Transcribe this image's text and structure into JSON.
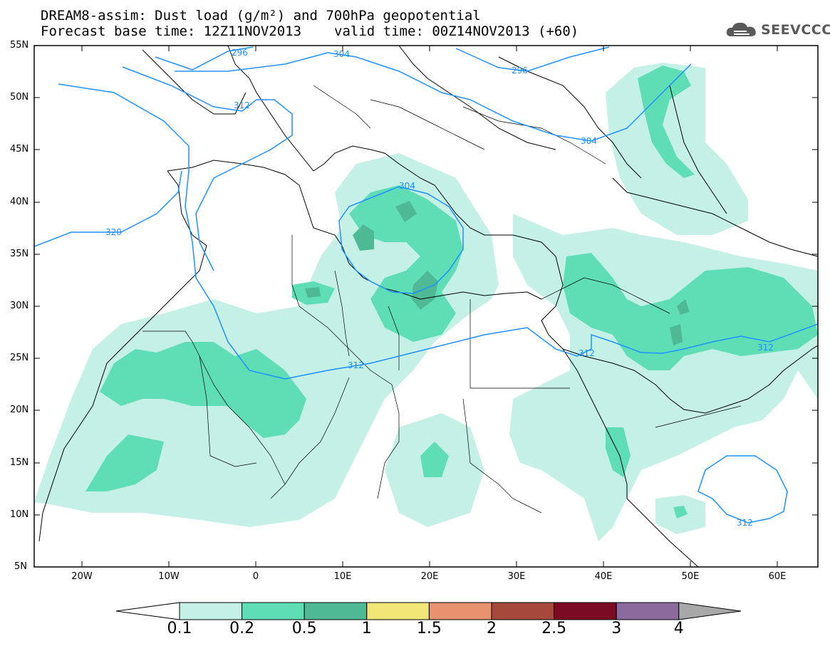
{
  "header": {
    "title_line1": "DREAM8-assim: Dust load (g/m²) and 700hPa geopotential",
    "base_time": "Forecast base time: 12Z11NOV2013",
    "valid_time": "valid time: 00Z14NOV2013 (+60)"
  },
  "logo": {
    "icon": "cloud-icon",
    "text": "SEEVCCC"
  },
  "axes": {
    "lat_labels": [
      "55N",
      "50N",
      "45N",
      "40N",
      "35N",
      "30N",
      "25N",
      "20N",
      "15N",
      "10N",
      "5N"
    ],
    "lon_labels": [
      "20W",
      "10W",
      "0",
      "10E",
      "20E",
      "30E",
      "40E",
      "50E",
      "60E"
    ]
  },
  "contours": {
    "color": "#1e90ff",
    "labels": [
      "296",
      "304",
      "296",
      "312",
      "304",
      "320",
      "304",
      "312",
      "312",
      "312",
      "312"
    ]
  },
  "colorbar": {
    "colors": [
      "#c4f0e6",
      "#5fdeb6",
      "#4fb894",
      "#f2e578",
      "#e89270",
      "#a5493c",
      "#7b0b25",
      "#8b6a9d",
      "#a8a8a8"
    ],
    "labels": [
      "0.1",
      "0.2",
      "0.5",
      "1",
      "1.5",
      "2",
      "2.5",
      "3",
      "4"
    ]
  },
  "dust_colors": {
    "light": "#c4f0e6",
    "medium": "#5fdeb6",
    "dark": "#4fb894"
  }
}
